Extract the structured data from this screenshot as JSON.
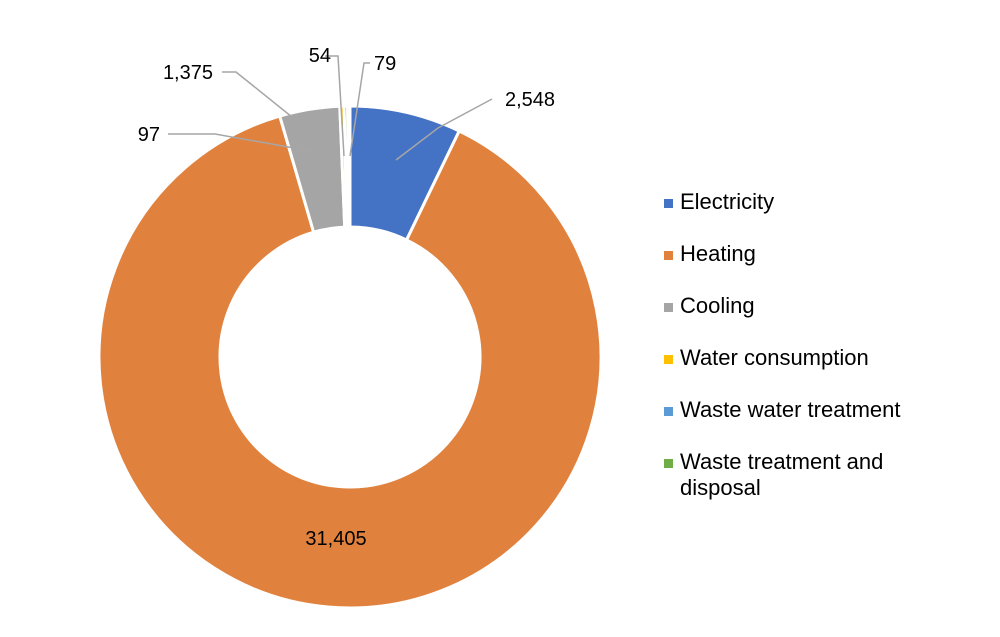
{
  "chart_data": {
    "type": "pie",
    "variant": "donut",
    "legend_position": "right",
    "slices": [
      {
        "label": "Electricity",
        "value": 2548,
        "display": "2,548",
        "color": "#4472c4"
      },
      {
        "label": "Heating",
        "value": 31405,
        "display": "31,405",
        "color": "#e0823e"
      },
      {
        "label": "Cooling",
        "value": 1375,
        "display": "1,375",
        "color": "#a5a5a5"
      },
      {
        "label": "Water consumption",
        "value": 97,
        "display": "97",
        "color": "#ffc000"
      },
      {
        "label": "Waste water treatment",
        "value": 54,
        "display": "54",
        "color": "#5b9bd5"
      },
      {
        "label": "Waste treatment and disposal",
        "value": 79,
        "display": "79",
        "color": "#70ad47"
      }
    ]
  }
}
